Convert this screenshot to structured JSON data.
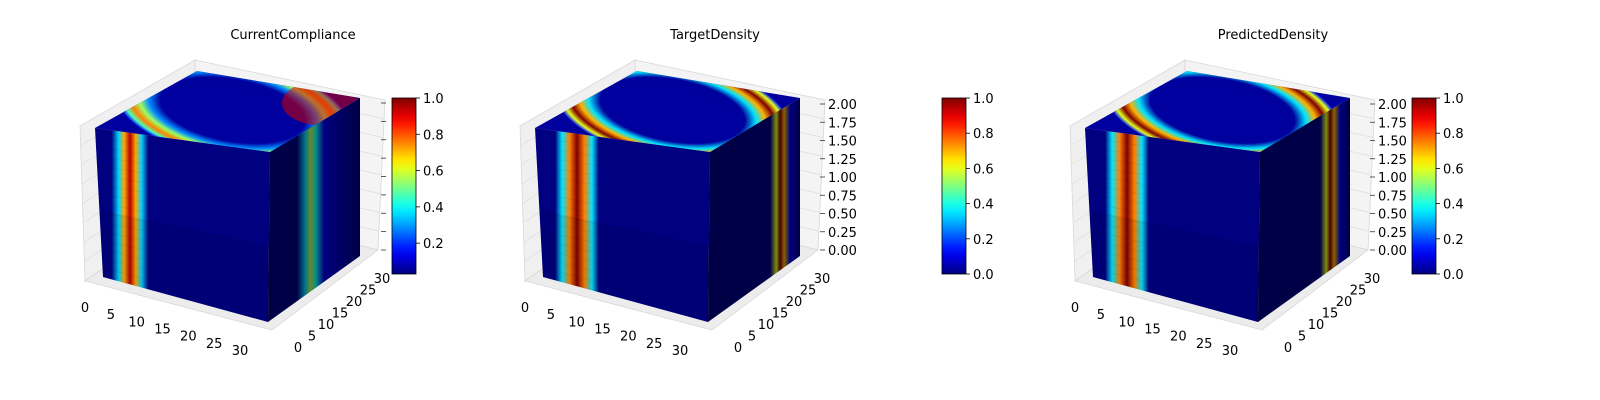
{
  "chart_data": [
    {
      "type": "3d-voxel",
      "title": "CurrentCompliance",
      "x_ticks": [
        "0",
        "5",
        "10",
        "15",
        "20",
        "25",
        "30"
      ],
      "y_ticks": [
        "0",
        "5",
        "10",
        "15",
        "20",
        "25",
        "30"
      ],
      "z_ticks": [],
      "xlim": [
        0,
        32
      ],
      "ylim": [
        0,
        32
      ],
      "zlim": [
        0,
        2
      ],
      "grid": true,
      "colormap": "jet",
      "colorbar": {
        "ticks": [
          "0.2",
          "0.4",
          "0.6",
          "0.8",
          "1.0"
        ],
        "range": [
          0.03,
          1.0
        ]
      },
      "front_stripes": [
        {
          "position": 0.2,
          "width": 0.13,
          "value": 0.95
        }
      ],
      "right_stripes": [
        {
          "position": 0.45,
          "width": 0.3,
          "value": 0.55
        }
      ],
      "top_ring": {
        "value": 0.75,
        "hot_side": "back-right"
      }
    },
    {
      "type": "3d-voxel",
      "title": "TargetDensity",
      "x_ticks": [
        "0",
        "5",
        "10",
        "15",
        "20",
        "25",
        "30"
      ],
      "y_ticks": [
        "0",
        "5",
        "10",
        "15",
        "20",
        "25",
        "30"
      ],
      "z_ticks": [
        "0.00",
        "0.25",
        "0.50",
        "0.75",
        "1.00",
        "1.25",
        "1.50",
        "1.75",
        "2.00"
      ],
      "xlim": [
        0,
        32
      ],
      "ylim": [
        0,
        32
      ],
      "zlim": [
        0,
        2
      ],
      "grid": true,
      "colormap": "jet",
      "colorbar": {
        "ticks": [
          "0.0",
          "0.2",
          "0.4",
          "0.6",
          "0.8",
          "1.0"
        ],
        "range": [
          0,
          1
        ]
      },
      "front_stripes": [
        {
          "position": 0.24,
          "width": 0.17,
          "value": 1.0
        }
      ],
      "right_stripes": [
        {
          "position": 0.78,
          "width": 0.22,
          "value": 1.0
        }
      ],
      "top_ring": {
        "value": 1.0,
        "hot_side": "all"
      }
    },
    {
      "type": "3d-voxel",
      "title": "PredictedDensity",
      "x_ticks": [
        "0",
        "5",
        "10",
        "15",
        "20",
        "25",
        "30"
      ],
      "y_ticks": [
        "0",
        "5",
        "10",
        "15",
        "20",
        "25",
        "30"
      ],
      "z_ticks": [
        "0.00",
        "0.25",
        "0.50",
        "0.75",
        "1.00",
        "1.25",
        "1.50",
        "1.75",
        "2.00"
      ],
      "xlim": [
        0,
        32
      ],
      "ylim": [
        0,
        32
      ],
      "zlim": [
        0,
        2
      ],
      "grid": true,
      "colormap": "jet",
      "colorbar": {
        "ticks": [
          "0.0",
          "0.2",
          "0.4",
          "0.6",
          "0.8",
          "1.0"
        ],
        "range": [
          0,
          1
        ]
      },
      "front_stripes": [
        {
          "position": 0.24,
          "width": 0.17,
          "value": 1.0
        }
      ],
      "right_stripes": [
        {
          "position": 0.78,
          "width": 0.22,
          "value": 1.0
        }
      ],
      "top_ring": {
        "value": 1.0,
        "hot_side": "all"
      }
    }
  ]
}
